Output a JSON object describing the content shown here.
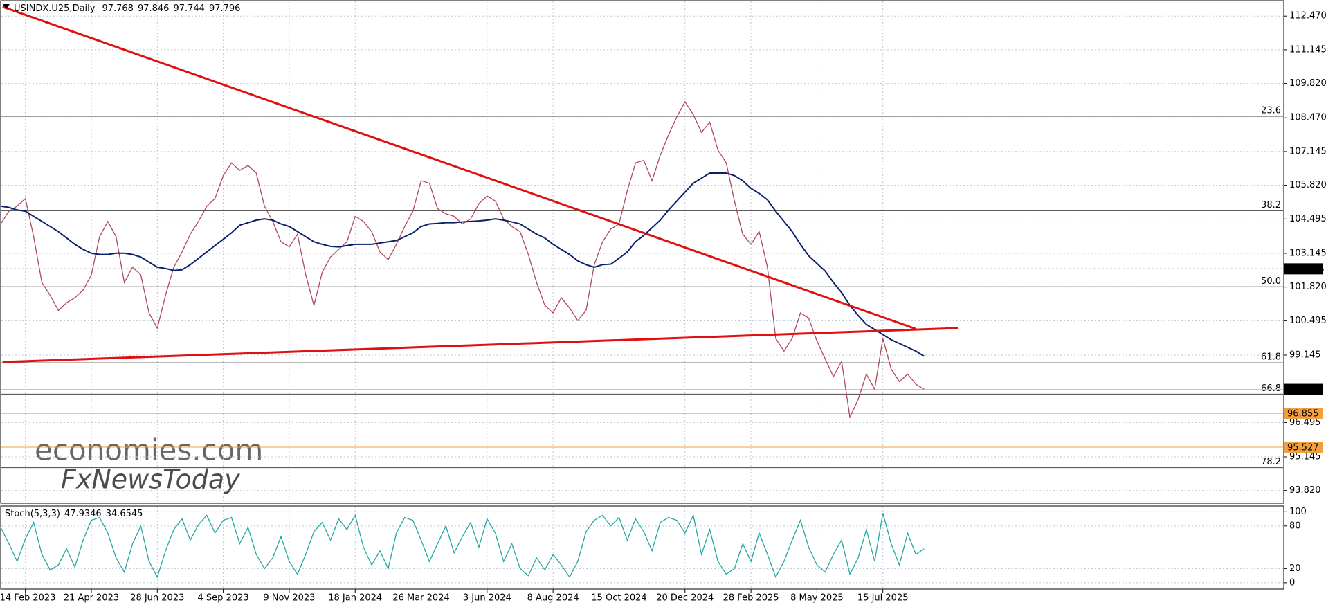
{
  "chart_data": [
    {
      "type": "line",
      "title": "USINDX.U25,Daily",
      "header_values": [
        97.768,
        97.846,
        97.744,
        97.796
      ],
      "categories": [
        null,
        null,
        null,
        "14 Feb 2023",
        null,
        null,
        null,
        null,
        null,
        null,
        null,
        "21 Apr 2023",
        null,
        null,
        null,
        null,
        null,
        null,
        null,
        "28 Jun 2023",
        null,
        null,
        null,
        null,
        null,
        null,
        null,
        "4 Sep 2023",
        null,
        null,
        null,
        null,
        null,
        null,
        null,
        "9 Nov 2023",
        null,
        null,
        null,
        null,
        null,
        null,
        null,
        "18 Jan 2024",
        null,
        null,
        null,
        null,
        null,
        null,
        null,
        "26 Mar 2024",
        null,
        null,
        null,
        null,
        null,
        null,
        null,
        "3 Jun 2024",
        null,
        null,
        null,
        null,
        null,
        null,
        null,
        "8 Aug 2024",
        null,
        null,
        null,
        null,
        null,
        null,
        null,
        "15 Oct 2024",
        null,
        null,
        null,
        null,
        null,
        null,
        null,
        "20 Dec 2024",
        null,
        null,
        null,
        null,
        null,
        null,
        null,
        "28 Feb 2025",
        null,
        null,
        null,
        null,
        null,
        null,
        null,
        "8 May 2025",
        null,
        null,
        null,
        null,
        null,
        null,
        null,
        "15 Jul 2025",
        null,
        null,
        null,
        null,
        null
      ],
      "series": [
        {
          "color": "#b0475a",
          "values": [
            104.3,
            104.8,
            105.0,
            105.3,
            103.8,
            102.0,
            101.5,
            100.9,
            101.2,
            101.4,
            101.7,
            102.3,
            103.8,
            104.4,
            103.8,
            102.0,
            102.6,
            102.3,
            100.8,
            100.2,
            101.5,
            102.6,
            103.2,
            103.9,
            104.4,
            105.0,
            105.3,
            106.2,
            106.7,
            106.4,
            106.6,
            106.3,
            105.0,
            104.4,
            103.6,
            103.4,
            103.9,
            102.3,
            101.1,
            102.4,
            103.0,
            103.3,
            103.6,
            104.6,
            104.4,
            104.0,
            103.2,
            102.9,
            103.5,
            104.2,
            104.8,
            106.0,
            105.9,
            104.9,
            104.7,
            104.6,
            104.3,
            104.5,
            105.1,
            105.4,
            105.2,
            104.5,
            104.2,
            104.0,
            103.1,
            102.0,
            101.1,
            100.8,
            101.4,
            101.0,
            100.5,
            100.9,
            102.7,
            103.6,
            104.1,
            104.3,
            105.6,
            106.7,
            106.8,
            106.0,
            107.0,
            107.8,
            108.5,
            109.1,
            108.6,
            107.9,
            108.3,
            107.2,
            106.7,
            105.2,
            103.9,
            103.5,
            104.0,
            102.6,
            99.8,
            99.3,
            99.8,
            100.8,
            100.6,
            99.7,
            99.0,
            98.3,
            98.9,
            96.7,
            97.4,
            98.4,
            97.8,
            99.8,
            98.6,
            98.1,
            98.4,
            98.0,
            97.8
          ]
        },
        {
          "color": "#0a1f6b",
          "values": [
            105.0,
            104.95,
            104.85,
            104.8,
            104.6,
            104.4,
            104.2,
            104.0,
            103.75,
            103.5,
            103.3,
            103.15,
            103.1,
            103.1,
            103.15,
            103.15,
            103.1,
            103.0,
            102.8,
            102.6,
            102.55,
            102.47,
            102.5,
            102.7,
            102.95,
            103.2,
            103.45,
            103.7,
            103.95,
            104.25,
            104.35,
            104.45,
            104.5,
            104.45,
            104.3,
            104.2,
            104.0,
            103.8,
            103.6,
            103.5,
            103.42,
            103.4,
            103.45,
            103.5,
            103.5,
            103.5,
            103.55,
            103.6,
            103.65,
            103.8,
            103.95,
            104.2,
            104.3,
            104.32,
            104.35,
            104.35,
            104.38,
            104.4,
            104.42,
            104.45,
            104.5,
            104.45,
            104.38,
            104.3,
            104.1,
            103.9,
            103.75,
            103.5,
            103.3,
            103.1,
            102.85,
            102.7,
            102.6,
            102.7,
            102.72,
            102.95,
            103.2,
            103.6,
            103.85,
            104.15,
            104.45,
            104.85,
            105.2,
            105.55,
            105.9,
            106.1,
            106.3,
            106.3,
            106.3,
            106.2,
            106.0,
            105.7,
            105.5,
            105.25,
            104.8,
            104.4,
            104.0,
            103.5,
            103.05,
            102.75,
            102.45,
            102.0,
            101.6,
            101.1,
            100.7,
            100.35,
            100.15,
            99.95,
            99.75,
            99.6,
            99.45,
            99.3,
            99.1
          ]
        }
      ],
      "ylim": [
        93.322,
        113.047
      ],
      "yticks": [
        {
          "value": 112.47,
          "label": "112.470"
        },
        111.145,
        {
          "value": 109.82,
          "label": "109.820"
        },
        {
          "value": 108.47,
          "label": "108.470"
        },
        107.145,
        {
          "value": 105.82,
          "label": "105.820"
        },
        104.495,
        103.145,
        {
          "value": 101.82,
          "label": "101.820"
        },
        100.495,
        99.145,
        96.495,
        95.145,
        {
          "value": 93.82,
          "label": "93.820"
        }
      ],
      "grid": true,
      "levels": [
        {
          "value": 108.53,
          "label": "23.6"
        },
        {
          "value": 104.82,
          "label": "38.2"
        },
        {
          "value": 101.83,
          "label": "50.0"
        },
        {
          "value": 98.84,
          "label": "61.8"
        },
        {
          "value": 97.61,
          "label": "66.8"
        },
        {
          "value": 94.72,
          "label": "78.2"
        }
      ],
      "price_lines": [
        {
          "value": 102.535,
          "color": "#000000",
          "style": "dotted"
        },
        {
          "value": 97.796,
          "color": "#000000",
          "style": "light"
        },
        {
          "value": 96.855,
          "color": "#f0a040",
          "style": "solid"
        },
        {
          "value": 95.527,
          "color": "#f0a040",
          "style": "solid"
        }
      ],
      "watermark": [
        "economies.com",
        "FxNewsToday"
      ]
    },
    {
      "type": "line",
      "title": "Stoch(5,3,3)",
      "header_values": [
        47.9346,
        34.6545
      ],
      "series": [
        {
          "color": "#20a8a0",
          "values": [
            78,
            55,
            30,
            62,
            85,
            40,
            18,
            25,
            48,
            22,
            60,
            88,
            92,
            70,
            35,
            15,
            55,
            80,
            30,
            8,
            45,
            75,
            90,
            60,
            82,
            95,
            70,
            88,
            92,
            55,
            78,
            40,
            20,
            35,
            65,
            30,
            12,
            40,
            72,
            85,
            60,
            90,
            75,
            95,
            50,
            25,
            45,
            20,
            70,
            92,
            88,
            60,
            30,
            55,
            80,
            42,
            65,
            85,
            50,
            90,
            70,
            30,
            55,
            20,
            10,
            35,
            18,
            40,
            25,
            8,
            30,
            72,
            88,
            95,
            80,
            92,
            60,
            90,
            72,
            45,
            85,
            92,
            88,
            70,
            95,
            40,
            75,
            30,
            12,
            20,
            55,
            30,
            70,
            40,
            8,
            30,
            60,
            88,
            50,
            25,
            15,
            40,
            60,
            12,
            35,
            75,
            30,
            98,
            55,
            25,
            70,
            40,
            48
          ]
        }
      ],
      "ylim": [
        -8.9,
        108.1
      ],
      "yticks": [
        100,
        80,
        20,
        0
      ],
      "grid": true
    }
  ]
}
